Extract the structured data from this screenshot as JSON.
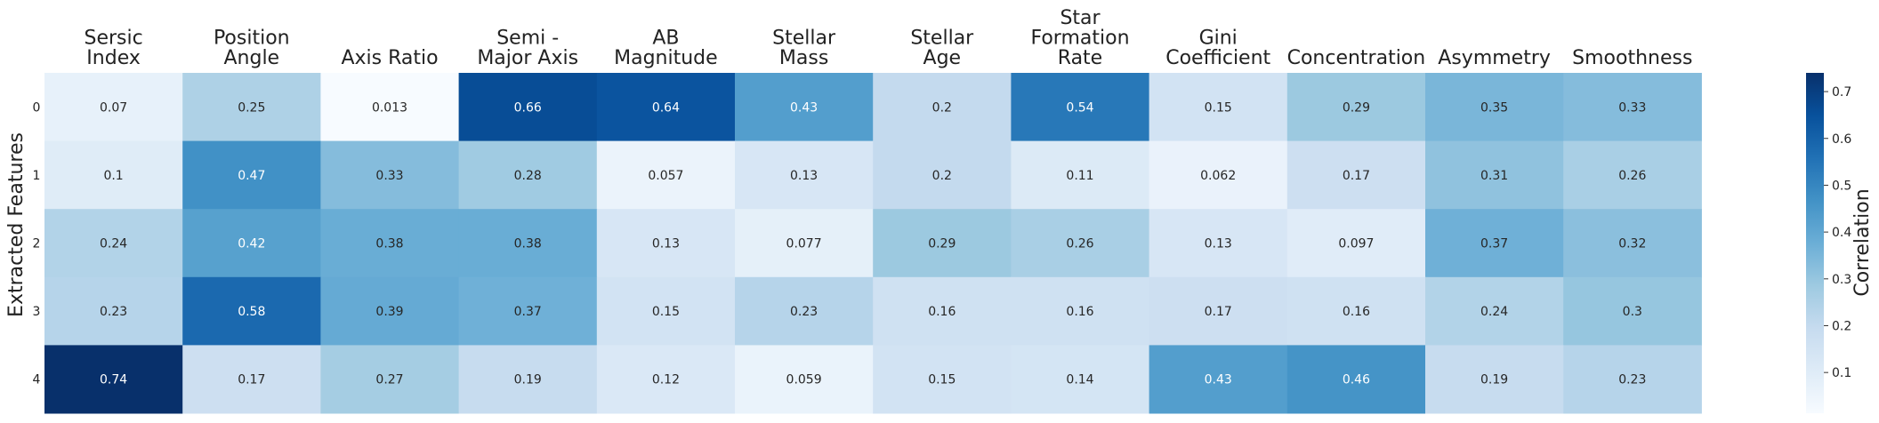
{
  "chart_data": {
    "type": "heatmap",
    "xlabel": "",
    "ylabel": "Extracted Features",
    "columns": [
      [
        "Sersic",
        "Index"
      ],
      [
        "Position",
        "Angle"
      ],
      [
        "Axis Ratio"
      ],
      [
        "Semi -",
        "Major Axis"
      ],
      [
        "AB",
        "Magnitude"
      ],
      [
        "Stellar",
        "Mass"
      ],
      [
        "Stellar",
        "Age"
      ],
      [
        "Star",
        "Formation",
        "Rate"
      ],
      [
        "Gini",
        "Coefficient"
      ],
      [
        "Concentration"
      ],
      [
        "Asymmetry"
      ],
      [
        "Smoothness"
      ]
    ],
    "rows": [
      "0",
      "1",
      "2",
      "3",
      "4"
    ],
    "values": [
      [
        0.07,
        0.25,
        0.013,
        0.66,
        0.64,
        0.43,
        0.2,
        0.54,
        0.15,
        0.29,
        0.35,
        0.33
      ],
      [
        0.1,
        0.47,
        0.33,
        0.28,
        0.057,
        0.13,
        0.2,
        0.11,
        0.062,
        0.17,
        0.31,
        0.26
      ],
      [
        0.24,
        0.42,
        0.38,
        0.38,
        0.13,
        0.077,
        0.29,
        0.26,
        0.13,
        0.097,
        0.37,
        0.32
      ],
      [
        0.23,
        0.58,
        0.39,
        0.37,
        0.15,
        0.23,
        0.16,
        0.16,
        0.17,
        0.16,
        0.24,
        0.3
      ],
      [
        0.74,
        0.17,
        0.27,
        0.19,
        0.12,
        0.059,
        0.15,
        0.14,
        0.43,
        0.46,
        0.19,
        0.23
      ]
    ],
    "colorbar": {
      "label": "Correlation",
      "range": [
        0.013,
        0.74
      ],
      "ticks": [
        "0.1",
        "0.2",
        "0.3",
        "0.4",
        "0.5",
        "0.6",
        "0.7"
      ],
      "colormap": "Blues"
    }
  }
}
